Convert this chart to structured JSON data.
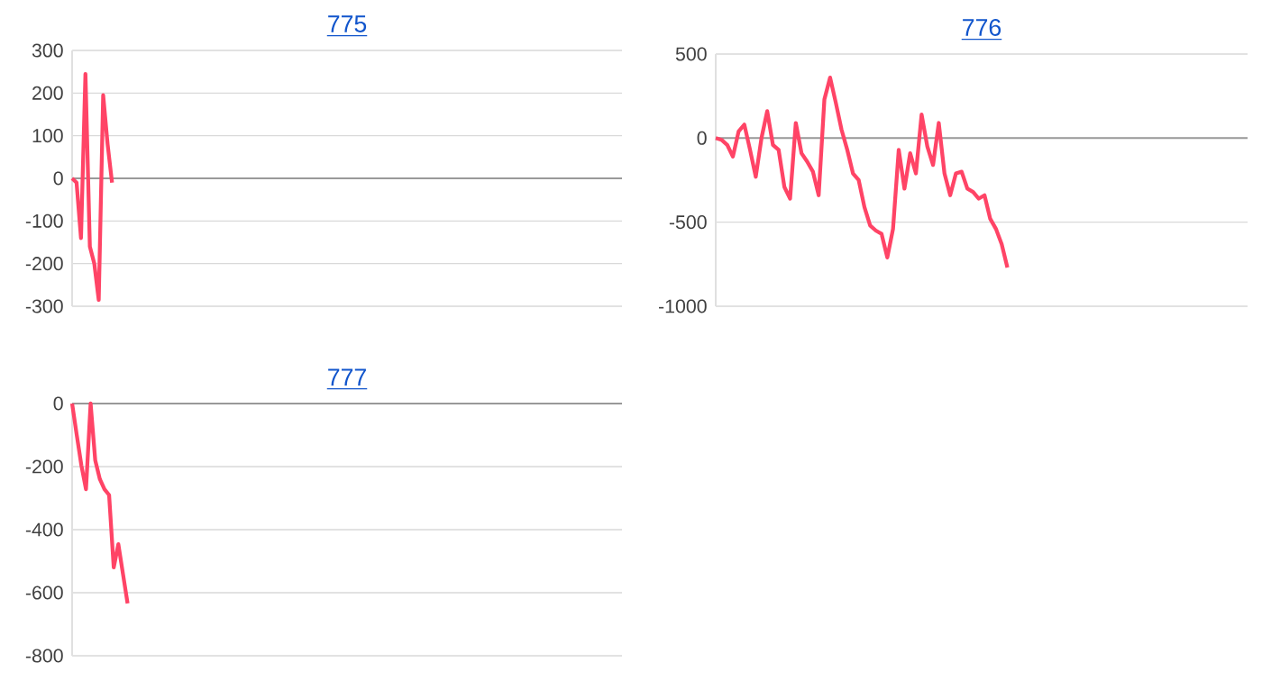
{
  "chart_data": [
    {
      "type": "line",
      "title": "775",
      "categories": [
        null,
        null,
        null,
        null,
        null,
        null,
        null,
        null,
        null,
        null,
        null,
        null,
        null,
        null,
        null,
        null,
        null,
        null,
        null,
        null,
        null,
        null,
        null,
        null,
        null,
        null,
        null,
        null,
        null,
        null,
        null,
        null,
        null,
        null,
        null,
        null,
        null,
        null,
        null,
        null,
        null,
        null,
        null,
        null,
        null,
        null,
        null,
        null,
        null,
        null,
        null,
        null,
        null,
        null,
        null,
        null,
        null,
        null,
        null,
        null,
        null,
        null,
        null,
        null,
        null,
        null,
        null,
        null,
        null,
        null,
        null,
        null,
        null,
        null,
        null,
        null,
        null,
        null,
        null,
        null,
        null,
        null,
        null,
        null,
        null,
        null,
        null,
        null,
        null,
        null,
        null,
        null,
        null,
        null,
        null,
        null,
        null,
        null,
        null,
        null,
        null,
        null,
        null,
        null,
        null,
        null,
        null,
        null,
        null,
        null,
        null,
        null,
        null,
        null,
        null,
        null,
        null,
        null,
        null,
        null,
        null,
        null,
        null,
        null,
        null
      ],
      "series": [
        {
          "color": "#ff4466",
          "values": [
            0,
            -10,
            -140,
            245,
            -160,
            -200,
            -285,
            195,
            80,
            -10,
            null,
            null,
            null,
            null,
            null,
            null,
            null,
            null,
            null,
            null,
            null,
            null,
            null,
            null,
            null,
            null,
            null,
            null,
            null,
            null,
            null,
            null,
            null,
            null,
            null,
            null,
            null,
            null,
            null,
            null,
            null,
            null,
            null,
            null,
            null,
            null,
            null,
            null,
            null,
            null,
            null,
            null,
            null,
            null,
            null,
            null,
            null,
            null,
            null,
            null,
            null,
            null,
            null,
            null,
            null,
            null,
            null,
            null,
            null,
            null,
            null,
            null,
            null,
            null,
            null,
            null,
            null,
            null,
            null,
            null,
            null,
            null,
            null,
            null,
            null,
            null,
            null,
            null,
            null,
            null,
            null,
            null,
            null,
            null,
            null,
            null,
            null,
            null,
            null,
            null,
            null,
            null,
            null,
            null,
            null,
            null,
            null,
            null,
            null,
            null,
            null,
            null,
            null,
            null,
            null,
            null,
            null,
            null,
            null,
            null,
            null,
            null,
            null,
            null,
            null
          ]
        }
      ],
      "ylim": [
        -300,
        300
      ],
      "yticks": [
        -300,
        -200,
        -100,
        0,
        100,
        200,
        300
      ],
      "grid": "y",
      "tick_labels": "y"
    },
    {
      "type": "line",
      "title": "776",
      "categories": [
        null,
        null,
        null,
        null,
        null,
        null,
        null,
        null,
        null,
        null,
        null,
        null,
        null,
        null,
        null,
        null,
        null,
        null,
        null,
        null,
        null,
        null,
        null,
        null,
        null,
        null,
        null,
        null,
        null,
        null,
        null,
        null,
        null,
        null,
        null,
        null,
        null,
        null,
        null,
        null,
        null,
        null,
        null,
        null,
        null,
        null,
        null,
        null,
        null,
        null,
        null,
        null,
        null,
        null,
        null,
        null,
        null,
        null,
        null,
        null,
        null,
        null,
        null,
        null,
        null,
        null,
        null,
        null,
        null,
        null,
        null,
        null,
        null,
        null,
        null,
        null,
        null,
        null,
        null,
        null,
        null,
        null,
        null,
        null,
        null,
        null,
        null,
        null,
        null,
        null,
        null,
        null,
        null,
        null
      ],
      "series": [
        {
          "color": "#ff4466",
          "values": [
            0,
            -10,
            -40,
            -110,
            40,
            80,
            -70,
            -230,
            0,
            160,
            -40,
            -70,
            -290,
            -360,
            90,
            -90,
            -140,
            -200,
            -340,
            230,
            360,
            210,
            50,
            -70,
            -210,
            -250,
            -410,
            -520,
            -550,
            -570,
            -710,
            -540,
            -70,
            -300,
            -90,
            -210,
            140,
            -50,
            -160,
            90,
            -210,
            -340,
            -210,
            -200,
            -300,
            -320,
            -360,
            -340,
            -480,
            -540,
            -630,
            -770,
            null,
            null,
            null,
            null,
            null,
            null,
            null,
            null,
            null,
            null,
            null,
            null,
            null,
            null,
            null,
            null,
            null,
            null,
            null,
            null,
            null,
            null,
            null,
            null,
            null,
            null,
            null,
            null,
            null,
            null,
            null,
            null,
            null,
            null,
            null,
            null,
            null,
            null,
            null,
            null,
            null,
            null
          ]
        }
      ],
      "ylim": [
        -1000,
        500
      ],
      "yticks": [
        -1000,
        -500,
        0,
        500
      ],
      "grid": "y",
      "tick_labels": "y"
    },
    {
      "type": "line",
      "title": "777",
      "categories": [
        null,
        null,
        null,
        null,
        null,
        null,
        null,
        null,
        null,
        null,
        null,
        null,
        null,
        null,
        null,
        null,
        null,
        null,
        null,
        null,
        null,
        null,
        null,
        null,
        null,
        null,
        null,
        null,
        null,
        null,
        null,
        null,
        null,
        null,
        null,
        null,
        null,
        null,
        null,
        null,
        null,
        null,
        null,
        null,
        null,
        null,
        null,
        null,
        null,
        null,
        null,
        null,
        null,
        null,
        null,
        null,
        null,
        null,
        null,
        null,
        null,
        null,
        null,
        null,
        null,
        null,
        null,
        null,
        null,
        null,
        null,
        null,
        null,
        null,
        null,
        null,
        null,
        null,
        null,
        null,
        null,
        null,
        null,
        null,
        null,
        null,
        null,
        null,
        null,
        null,
        null,
        null,
        null,
        null,
        null,
        null,
        null,
        null,
        null,
        null,
        null,
        null,
        null,
        null,
        null,
        null,
        null,
        null,
        null,
        null,
        null,
        null,
        null,
        null,
        null,
        null,
        null,
        null,
        null,
        null
      ],
      "series": [
        {
          "color": "#ff4466",
          "values": [
            0,
            -100,
            -196,
            -272,
            0,
            -180,
            -240,
            -272,
            -290,
            -520,
            -446,
            -540,
            -634,
            null,
            null,
            null,
            null,
            null,
            null,
            null,
            null,
            null,
            null,
            null,
            null,
            null,
            null,
            null,
            null,
            null,
            null,
            null,
            null,
            null,
            null,
            null,
            null,
            null,
            null,
            null,
            null,
            null,
            null,
            null,
            null,
            null,
            null,
            null,
            null,
            null,
            null,
            null,
            null,
            null,
            null,
            null,
            null,
            null,
            null,
            null,
            null,
            null,
            null,
            null,
            null,
            null,
            null,
            null,
            null,
            null,
            null,
            null,
            null,
            null,
            null,
            null,
            null,
            null,
            null,
            null,
            null,
            null,
            null,
            null,
            null,
            null,
            null,
            null,
            null,
            null,
            null,
            null,
            null,
            null,
            null,
            null,
            null,
            null,
            null,
            null,
            null,
            null,
            null,
            null,
            null,
            null,
            null,
            null,
            null,
            null,
            null,
            null,
            null,
            null,
            null,
            null,
            null,
            null,
            null,
            null
          ]
        }
      ],
      "ylim": [
        -800,
        0
      ],
      "yticks": [
        -800,
        -600,
        -400,
        -200,
        0
      ],
      "grid": "y",
      "tick_labels": "y"
    }
  ]
}
